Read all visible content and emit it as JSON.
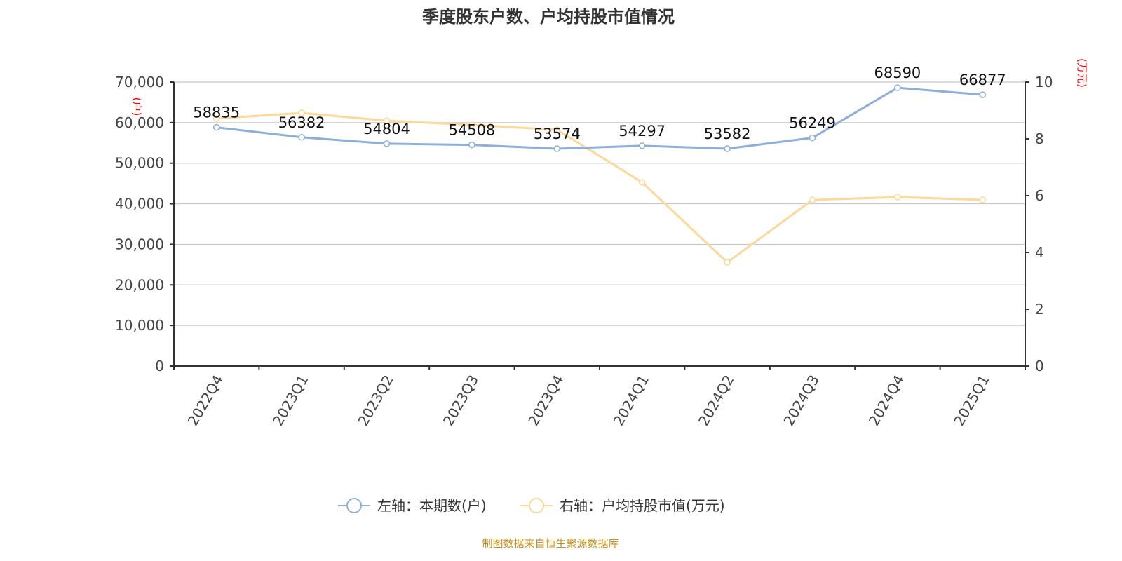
{
  "chart_data": {
    "type": "line",
    "title": "季度股东户数、户均持股市值情况",
    "categories": [
      "2022Q4",
      "2023Q1",
      "2023Q2",
      "2023Q3",
      "2023Q4",
      "2024Q1",
      "2024Q2",
      "2024Q3",
      "2024Q4",
      "2025Q1"
    ],
    "left_axis": {
      "name": "(户)",
      "range": [
        0,
        70000
      ],
      "ticks": [
        "0",
        "10,000",
        "20,000",
        "30,000",
        "40,000",
        "50,000",
        "60,000",
        "70,000"
      ]
    },
    "right_axis": {
      "name": "(万元)",
      "range": [
        0,
        10
      ],
      "ticks": [
        "0",
        "2",
        "4",
        "6",
        "8",
        "10"
      ]
    },
    "grid": true,
    "legend_position": "bottom",
    "series": [
      {
        "name": "左轴：本期数(户)",
        "axis": "left",
        "color": "#8eaedb",
        "values": [
          58835,
          56382,
          54804,
          54508,
          53574,
          54297,
          53582,
          56249,
          68590,
          66877
        ],
        "labels_shown": true
      },
      {
        "name": "右轴：户均持股市值(万元)",
        "axis": "right",
        "color": "#fdd898",
        "values": [
          8.72,
          8.91,
          8.64,
          8.49,
          8.32,
          6.47,
          3.65,
          5.85,
          5.95,
          5.85
        ],
        "labels_shown": false
      }
    ],
    "source": "制图数据来自恒生聚源数据库"
  }
}
